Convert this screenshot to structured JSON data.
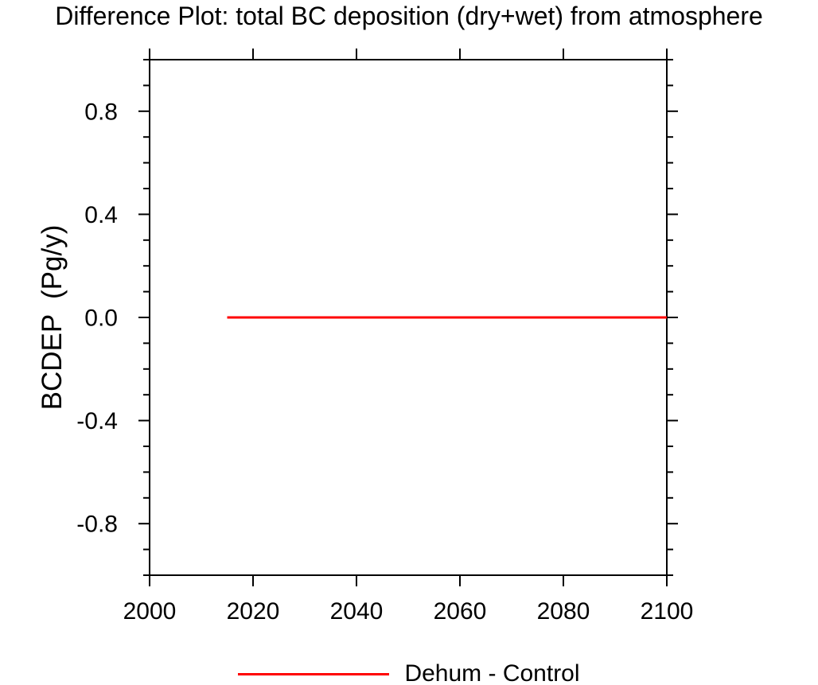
{
  "chart_data": {
    "type": "line",
    "title": "Difference Plot: total BC deposition (dry+wet) from atmosphere",
    "xlabel": "",
    "ylabel": "BCDEP  (Pg/y)",
    "xlim": [
      2000,
      2100
    ],
    "ylim": [
      -1.0,
      1.0
    ],
    "x_ticks": [
      2000,
      2020,
      2040,
      2060,
      2080,
      2100
    ],
    "x_tick_labels": [
      "2000",
      "2020",
      "2040",
      "2060",
      "2080",
      "2100"
    ],
    "y_major_ticks": [
      -0.8,
      -0.4,
      0.0,
      0.4,
      0.8
    ],
    "y_tick_labels": [
      "-0.8",
      "-0.4",
      "0.0",
      "0.4",
      "0.8"
    ],
    "y_minor_step": 0.1,
    "grid": false,
    "legend_position": "bottom-center",
    "series": [
      {
        "name": "Dehum - Control",
        "color": "#ff0000",
        "x": [
          2015,
          2100
        ],
        "y": [
          0.0,
          0.0
        ],
        "constant_value": 0.0
      }
    ]
  },
  "legend": {
    "entries": [
      {
        "label": "Dehum - Control",
        "color": "#ff0000"
      }
    ]
  },
  "colors": {
    "background": "#ffffff",
    "axis": "#000000",
    "text": "#000000",
    "series_red": "#ff0000"
  }
}
